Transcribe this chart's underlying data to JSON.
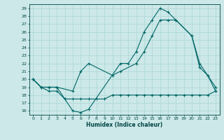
{
  "xlabel": "Humidex (Indice chaleur)",
  "bg_color": "#cce8e8",
  "grid_color": "#b0d8d8",
  "line_color": "#006666",
  "xlim": [
    -0.5,
    23.5
  ],
  "ylim": [
    15.5,
    29.5
  ],
  "yticks": [
    16,
    17,
    18,
    19,
    20,
    21,
    22,
    23,
    24,
    25,
    26,
    27,
    28,
    29
  ],
  "xticks": [
    0,
    1,
    2,
    3,
    4,
    5,
    6,
    7,
    8,
    9,
    10,
    11,
    12,
    13,
    14,
    15,
    16,
    17,
    18,
    19,
    20,
    21,
    22,
    23
  ],
  "line1_x": [
    0,
    1,
    2,
    3,
    4,
    5,
    6,
    7,
    8,
    9,
    10,
    11,
    12,
    13,
    14,
    15,
    16,
    17,
    18,
    19,
    20,
    21,
    22,
    23
  ],
  "line1_y": [
    20,
    19,
    18.5,
    18.5,
    17.5,
    17.5,
    17.5,
    17.5,
    17.5,
    17.5,
    18,
    18,
    18,
    18,
    18,
    18,
    18,
    18,
    18,
    18,
    18,
    18,
    18,
    18.5
  ],
  "line2_x": [
    0,
    1,
    2,
    3,
    5,
    6,
    7,
    10,
    11,
    13,
    14,
    15,
    16,
    17,
    18,
    20,
    21,
    22,
    23
  ],
  "line2_y": [
    20,
    19,
    19,
    19,
    18.5,
    21,
    22,
    20.5,
    21,
    22,
    23.5,
    25.5,
    27.5,
    27.5,
    27.5,
    25.5,
    21.5,
    20.5,
    19
  ],
  "line3_x": [
    0,
    1,
    2,
    3,
    4,
    5,
    6,
    7,
    11,
    12,
    13,
    14,
    15,
    16,
    17,
    18,
    20,
    21,
    22,
    23
  ],
  "line3_y": [
    20,
    19,
    19,
    19,
    17.5,
    16,
    15.8,
    16.2,
    22,
    22,
    23.5,
    26,
    27.5,
    29,
    28.5,
    27.5,
    25.5,
    22,
    20.5,
    18.5
  ]
}
